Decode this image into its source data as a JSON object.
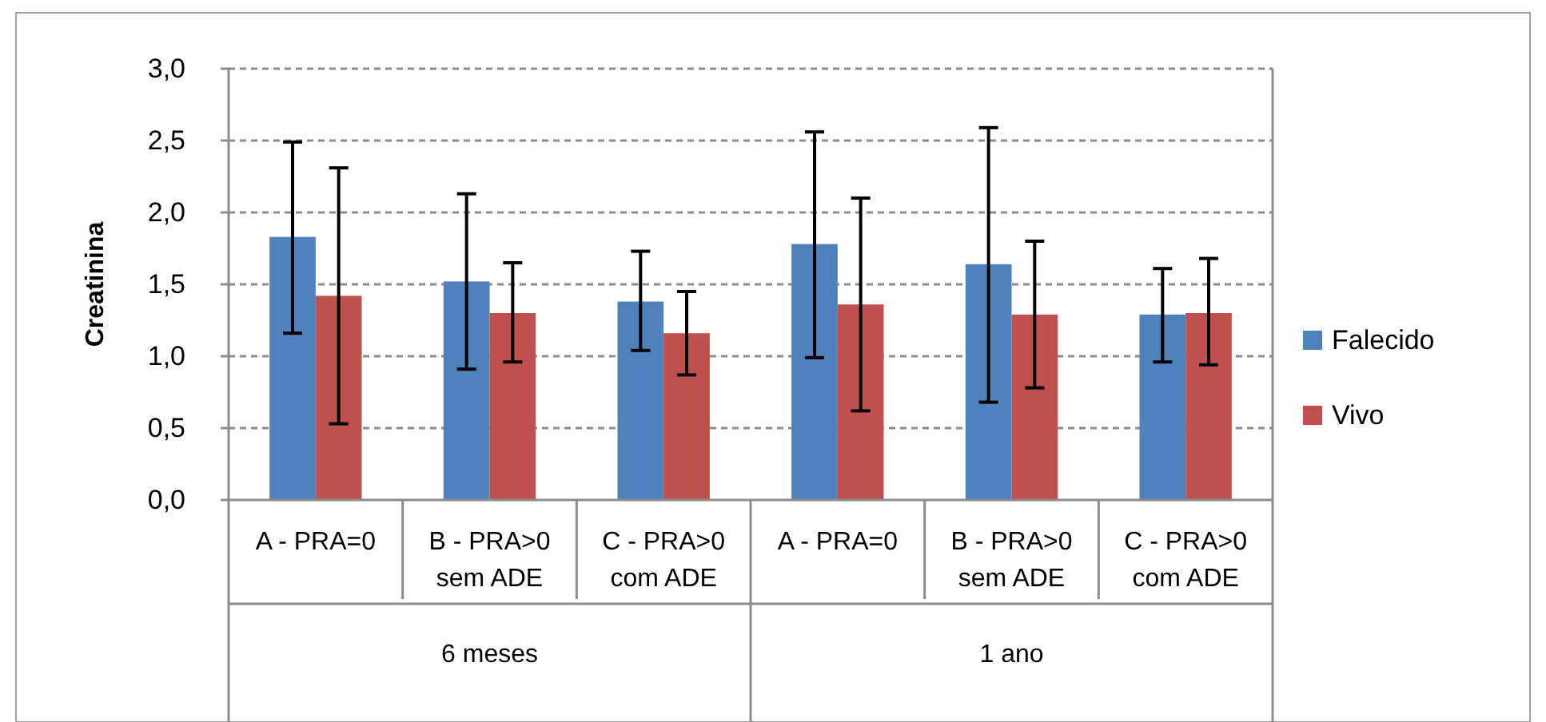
{
  "chart_data": {
    "type": "bar",
    "ylabel": "Creatinina",
    "categories": [
      "A - PRA=0",
      "B - PRA>0 sem ADE",
      "C - PRA>0 com ADE",
      "A - PRA=0",
      "B - PRA>0 sem ADE",
      "C - PRA>0 com ADE"
    ],
    "annotations": [
      "6 meses",
      "1 ano"
    ],
    "series": [
      {
        "name": "Falecido",
        "color": "#4f81bd",
        "values": [
          1.83,
          1.52,
          1.38,
          1.78,
          1.64,
          1.29
        ],
        "errors": [
          [
            1.16,
            2.49
          ],
          [
            0.91,
            2.13
          ],
          [
            1.04,
            1.73
          ],
          [
            0.99,
            2.56
          ],
          [
            0.68,
            2.59
          ],
          [
            0.96,
            1.61
          ]
        ]
      },
      {
        "name": "Vivo",
        "color": "#c0504d",
        "values": [
          1.42,
          1.3,
          1.16,
          1.36,
          1.29,
          1.3
        ],
        "errors": [
          [
            0.53,
            2.31
          ],
          [
            0.96,
            1.65
          ],
          [
            0.87,
            1.45
          ],
          [
            0.62,
            2.1
          ],
          [
            0.78,
            1.8
          ],
          [
            0.94,
            1.68
          ]
        ]
      }
    ],
    "ylim": [
      0,
      3
    ],
    "yticks": [
      {
        "value": 0,
        "label": "0,0"
      },
      {
        "value": 0.5,
        "label": "0,5"
      },
      {
        "value": 1,
        "label": "1,0"
      },
      {
        "value": 1.5,
        "label": "1,5"
      },
      {
        "value": 2,
        "label": "2,0"
      },
      {
        "value": 2.5,
        "label": "2,5"
      },
      {
        "value": 3,
        "label": "3,0"
      }
    ],
    "grid": "y",
    "legend": "right"
  }
}
